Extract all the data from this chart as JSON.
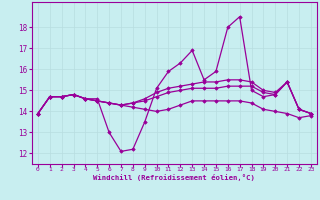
{
  "xlabel": "Windchill (Refroidissement éolien,°C)",
  "background_color": "#c8eef0",
  "line_color": "#990099",
  "grid_color": "#b8dde0",
  "xlim": [
    -0.5,
    23.5
  ],
  "ylim": [
    11.5,
    19.2
  ],
  "yticks": [
    12,
    13,
    14,
    15,
    16,
    17,
    18
  ],
  "xticks": [
    0,
    1,
    2,
    3,
    4,
    5,
    6,
    7,
    8,
    9,
    10,
    11,
    12,
    13,
    14,
    15,
    16,
    17,
    18,
    19,
    20,
    21,
    22,
    23
  ],
  "xtick_labels": [
    "0",
    "1",
    "2",
    "3",
    "4",
    "5",
    "6",
    "7",
    "8",
    "9",
    "10",
    "11",
    "12",
    "13",
    "14",
    "15",
    "16",
    "17",
    "18",
    "19",
    "20",
    "21",
    "22",
    "23"
  ],
  "series": [
    [
      13.9,
      14.7,
      14.7,
      14.8,
      14.6,
      14.6,
      13.0,
      12.1,
      12.2,
      13.5,
      15.1,
      15.9,
      16.3,
      16.9,
      15.5,
      15.9,
      18.0,
      18.5,
      15.0,
      14.7,
      14.8,
      15.4,
      14.1,
      13.9
    ],
    [
      13.9,
      14.7,
      14.7,
      14.8,
      14.6,
      14.5,
      14.4,
      14.3,
      14.2,
      14.1,
      14.0,
      14.1,
      14.3,
      14.5,
      14.5,
      14.5,
      14.5,
      14.5,
      14.4,
      14.1,
      14.0,
      13.9,
      13.7,
      13.8
    ],
    [
      13.9,
      14.7,
      14.7,
      14.8,
      14.6,
      14.5,
      14.4,
      14.3,
      14.4,
      14.5,
      14.7,
      14.9,
      15.0,
      15.1,
      15.1,
      15.1,
      15.2,
      15.2,
      15.2,
      14.9,
      14.8,
      15.4,
      14.1,
      13.9
    ],
    [
      13.9,
      14.7,
      14.7,
      14.8,
      14.6,
      14.5,
      14.4,
      14.3,
      14.4,
      14.6,
      14.9,
      15.1,
      15.2,
      15.3,
      15.4,
      15.4,
      15.5,
      15.5,
      15.4,
      15.0,
      14.9,
      15.4,
      14.1,
      13.9
    ]
  ]
}
